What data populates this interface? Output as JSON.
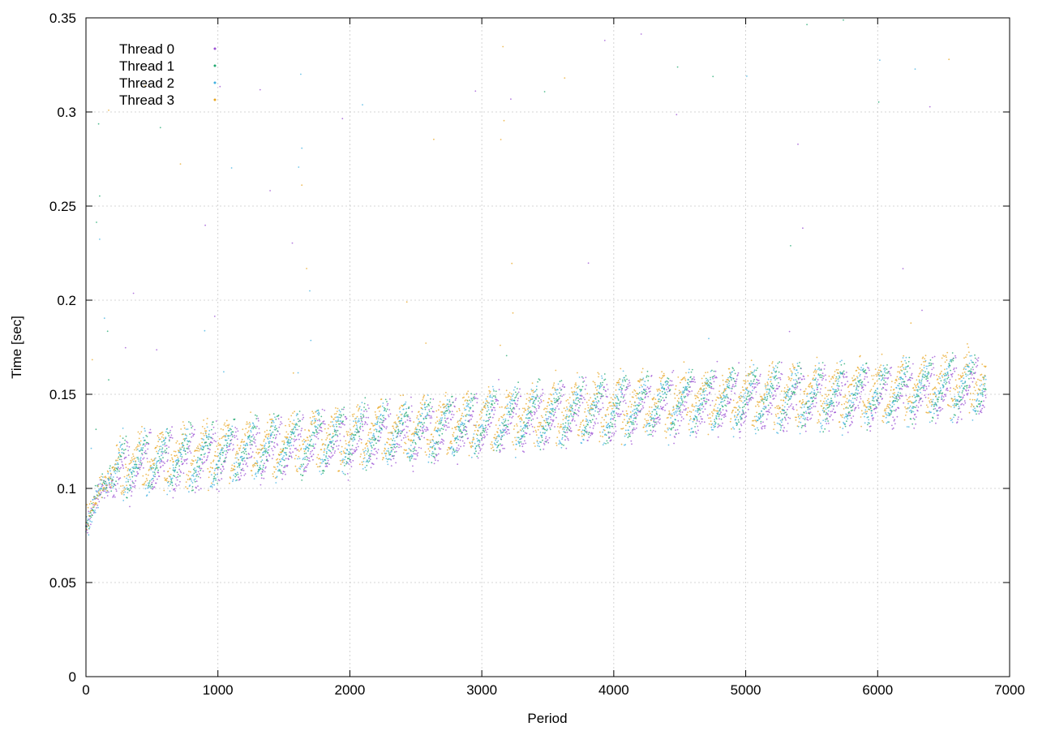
{
  "chart_data": {
    "type": "scatter",
    "xlabel": "Period",
    "ylabel": "Time [sec]",
    "xlim": [
      0,
      7000
    ],
    "ylim": [
      0,
      0.35
    ],
    "xticks": [
      0,
      1000,
      2000,
      3000,
      4000,
      5000,
      6000,
      7000
    ],
    "yticks": [
      0,
      0.05,
      0.1,
      0.15,
      0.2,
      0.25,
      0.3,
      0.35
    ],
    "xtick_labels": [
      "0",
      "1000",
      "2000",
      "3000",
      "4000",
      "5000",
      "6000",
      "7000"
    ],
    "ytick_labels": [
      "0",
      "0.05",
      "0.1",
      "0.15",
      "0.2",
      "0.25",
      "0.3",
      "0.35"
    ],
    "grid": true,
    "legend_position": "top-left",
    "period_max": 6820,
    "series": [
      {
        "name": "Thread 0",
        "color": "#9a4fd3",
        "trend": [
          [
            0,
            0.078
          ],
          [
            100,
            0.097
          ],
          [
            300,
            0.112
          ],
          [
            1000,
            0.118
          ],
          [
            2000,
            0.127
          ],
          [
            3000,
            0.135
          ],
          [
            4000,
            0.143
          ],
          [
            5000,
            0.148
          ],
          [
            6000,
            0.15
          ],
          [
            6820,
            0.155
          ]
        ]
      },
      {
        "name": "Thread 1",
        "color": "#1ea86e",
        "trend": [
          [
            0,
            0.08
          ],
          [
            100,
            0.099
          ],
          [
            300,
            0.114
          ],
          [
            1000,
            0.121
          ],
          [
            2000,
            0.129
          ],
          [
            3000,
            0.137
          ],
          [
            4000,
            0.145
          ],
          [
            5000,
            0.15
          ],
          [
            6000,
            0.152
          ],
          [
            6820,
            0.158
          ]
        ]
      },
      {
        "name": "Thread 2",
        "color": "#3fb0e0",
        "trend": [
          [
            0,
            0.079
          ],
          [
            100,
            0.098
          ],
          [
            300,
            0.113
          ],
          [
            1000,
            0.119
          ],
          [
            2000,
            0.128
          ],
          [
            3000,
            0.136
          ],
          [
            4000,
            0.144
          ],
          [
            5000,
            0.149
          ],
          [
            6000,
            0.151
          ],
          [
            6820,
            0.156
          ]
        ]
      },
      {
        "name": "Thread 3",
        "color": "#e8a521",
        "trend": [
          [
            0,
            0.081
          ],
          [
            100,
            0.1
          ],
          [
            300,
            0.115
          ],
          [
            1000,
            0.122
          ],
          [
            2000,
            0.13
          ],
          [
            3000,
            0.138
          ],
          [
            4000,
            0.146
          ],
          [
            5000,
            0.151
          ],
          [
            6000,
            0.154
          ],
          [
            6820,
            0.16
          ]
        ]
      }
    ]
  }
}
